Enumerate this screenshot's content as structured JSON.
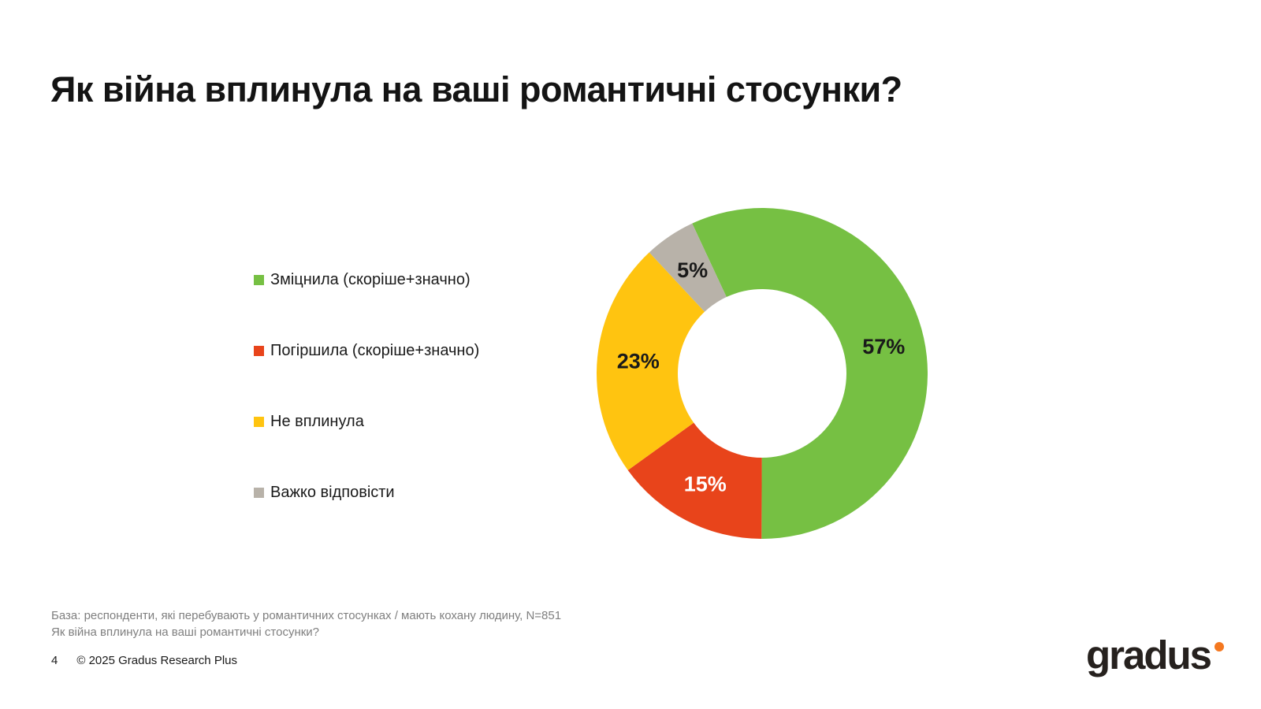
{
  "title": "Як війна вплинула на ваші романтичні стосунки?",
  "legend": {
    "items": [
      {
        "label": "Зміцнила (скоріше+значно)",
        "color": "#76C043"
      },
      {
        "label": "Погіршила (скоріше+значно)",
        "color": "#E8441B"
      },
      {
        "label": "Не вплинула",
        "color": "#FFC410"
      },
      {
        "label": "Важко відповісти",
        "color": "#B8B2A9"
      }
    ]
  },
  "chart_data": {
    "type": "pie",
    "subtype": "donut",
    "title": "Як війна вплинула на ваші романтичні стосунки?",
    "categories": [
      "Зміцнила (скоріше+значно)",
      "Погіршила (скоріше+значно)",
      "Не вплинула",
      "Важко відповісти"
    ],
    "values": [
      57,
      15,
      23,
      5
    ],
    "labels": [
      "57%",
      "15%",
      "23%",
      "5%"
    ],
    "colors": [
      "#76C043",
      "#E8441B",
      "#FFC410",
      "#B8B2A9"
    ],
    "label_colors": [
      "#1A1A1A",
      "#FFFFFF",
      "#1A1A1A",
      "#1A1A1A"
    ],
    "start_angle_deg": -25,
    "donut_hole_ratio": 0.51,
    "legend_position": "left",
    "grid": false
  },
  "footnotes": {
    "base_note": "База: респонденти, які перебувають у романтичних стосунках / мають кохану людину, N=851",
    "question_note": "Як війна вплинула на ваші романтичні стосунки?"
  },
  "status_bar": {
    "page_number": "4",
    "copyright": "© 2025 Gradus Research Plus"
  },
  "logo": {
    "text": "gradus",
    "dot_color": "#F47820"
  }
}
